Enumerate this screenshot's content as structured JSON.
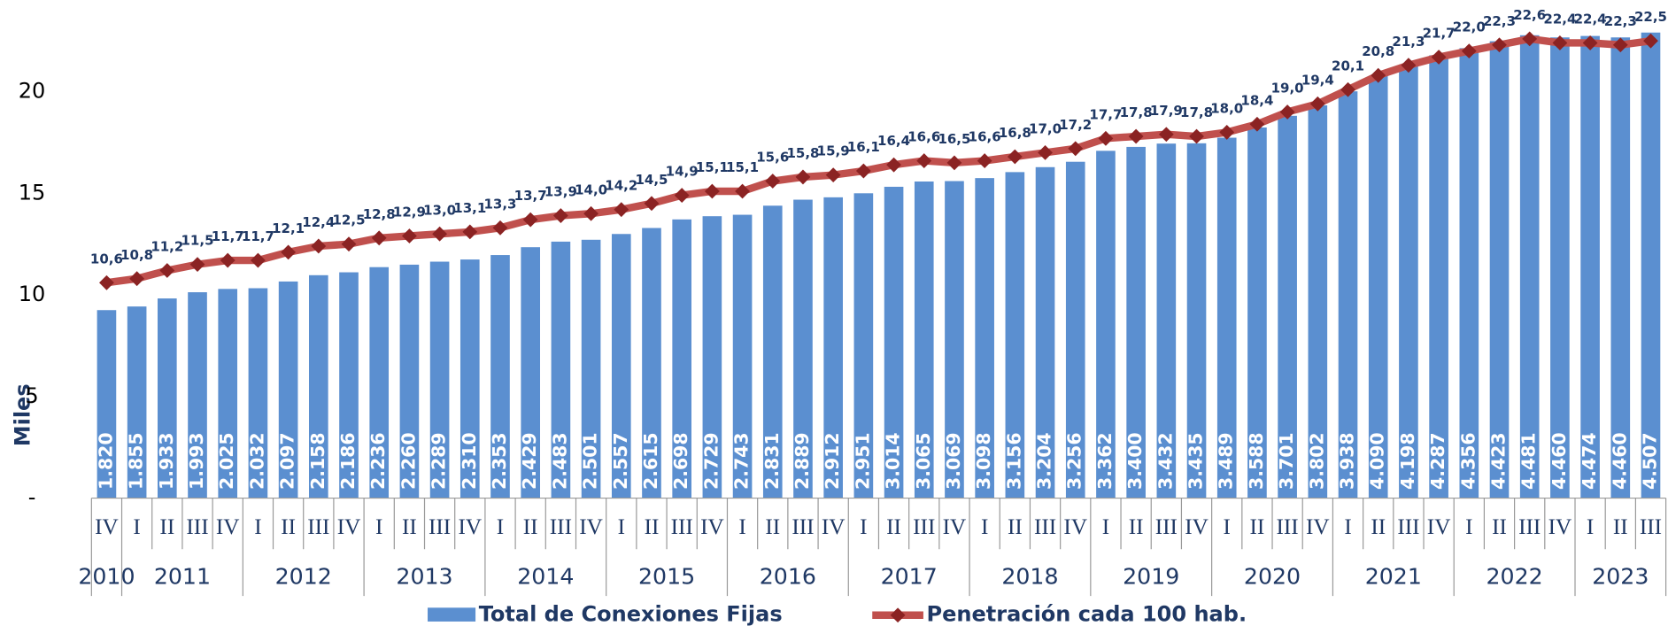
{
  "chart_data": {
    "type": "bar_line",
    "y_label": "Miles",
    "categories": [
      "IV",
      "I",
      "II",
      "III",
      "IV",
      "I",
      "II",
      "III",
      "IV",
      "I",
      "II",
      "III",
      "IV",
      "I",
      "II",
      "III",
      "IV",
      "I",
      "II",
      "III",
      "IV",
      "I",
      "II",
      "III",
      "IV",
      "I",
      "II",
      "III",
      "IV",
      "I",
      "II",
      "III",
      "IV",
      "I",
      "II",
      "III",
      "IV",
      "I",
      "II",
      "III",
      "IV",
      "I",
      "II",
      "III",
      "IV",
      "I",
      "II",
      "III",
      "IV",
      "I",
      "II",
      "III"
    ],
    "years": [
      "2010",
      "2011",
      "2012",
      "2013",
      "2014",
      "2015",
      "2016",
      "2017",
      "2018",
      "2019",
      "2020",
      "2021",
      "2022",
      "2023"
    ],
    "ylim": [
      0,
      24.5
    ],
    "yticks": [
      {
        "value": 0,
        "label": "-"
      },
      5,
      10,
      15,
      20
    ],
    "y2lim": [
      0,
      4820
    ],
    "series": [
      {
        "name": "Total de Conexiones Fijas",
        "type": "bar",
        "axis": "y2",
        "color": "#5b8fd0",
        "values": [
          1820,
          1855,
          1933,
          1993,
          2025,
          2032,
          2097,
          2158,
          2186,
          2236,
          2260,
          2289,
          2310,
          2353,
          2429,
          2483,
          2501,
          2557,
          2615,
          2698,
          2729,
          2743,
          2831,
          2889,
          2912,
          2951,
          3014,
          3065,
          3069,
          3098,
          3156,
          3204,
          3256,
          3362,
          3400,
          3432,
          3435,
          3489,
          3588,
          3701,
          3802,
          3938,
          4090,
          4198,
          4287,
          4356,
          4423,
          4481,
          4460,
          4474,
          4460,
          4507
        ],
        "value_labels": [
          "1.820",
          "1.855",
          "1.933",
          "1.993",
          "2.025",
          "2.032",
          "2.097",
          "2.158",
          "2.186",
          "2.236",
          "2.260",
          "2.289",
          "2.310",
          "2.353",
          "2.429",
          "2.483",
          "2.501",
          "2.557",
          "2.615",
          "2.698",
          "2.729",
          "2.743",
          "2.831",
          "2.889",
          "2.912",
          "2.951",
          "3.014",
          "3.065",
          "3.069",
          "3.098",
          "3.156",
          "3.204",
          "3.256",
          "3.362",
          "3.400",
          "3.432",
          "3.435",
          "3.489",
          "3.588",
          "3.701",
          "3.802",
          "3.938",
          "4.090",
          "4.198",
          "4.287",
          "4.356",
          "4.423",
          "4.481",
          "4.460",
          "4.474",
          "4.460",
          "4.507"
        ]
      },
      {
        "name": "Penetración cada 100 hab.",
        "type": "line",
        "color": "#c0504d",
        "marker_color": "#8b2323",
        "values": [
          10.6,
          10.8,
          11.2,
          11.5,
          11.7,
          11.7,
          12.1,
          12.4,
          12.5,
          12.8,
          12.9,
          13.0,
          13.1,
          13.3,
          13.7,
          13.9,
          14.0,
          14.2,
          14.5,
          14.9,
          15.1,
          15.1,
          15.6,
          15.8,
          15.9,
          16.1,
          16.4,
          16.6,
          16.5,
          16.6,
          16.8,
          17.0,
          17.2,
          17.7,
          17.8,
          17.9,
          17.8,
          18.0,
          18.4,
          19.0,
          19.4,
          20.1,
          20.8,
          21.3,
          21.7,
          22.0,
          22.3,
          22.6,
          22.4,
          22.4,
          22.3,
          22.5
        ],
        "value_labels": [
          "10,6",
          "10,8",
          "11,2",
          "11,5",
          "11,7",
          "11,7",
          "12,1",
          "12,4",
          "12,5",
          "12,8",
          "12,9",
          "13,0",
          "13,1",
          "13,3",
          "13,7",
          "13,9",
          "14,0",
          "14,2",
          "14,5",
          "14,9",
          "15,1",
          "15,1",
          "15,6",
          "15,8",
          "15,9",
          "16,1",
          "16,4",
          "16,6",
          "16,5",
          "16,6",
          "16,8",
          "17,0",
          "17,2",
          "17,7",
          "17,8",
          "17,9",
          "17,8",
          "18,0",
          "18,4",
          "19,0",
          "19,4",
          "20,1",
          "20,8",
          "21,3",
          "21,7",
          "22,0",
          "22,3",
          "22,6",
          "22,4",
          "22,4",
          "22,3",
          "22,5"
        ]
      }
    ]
  }
}
